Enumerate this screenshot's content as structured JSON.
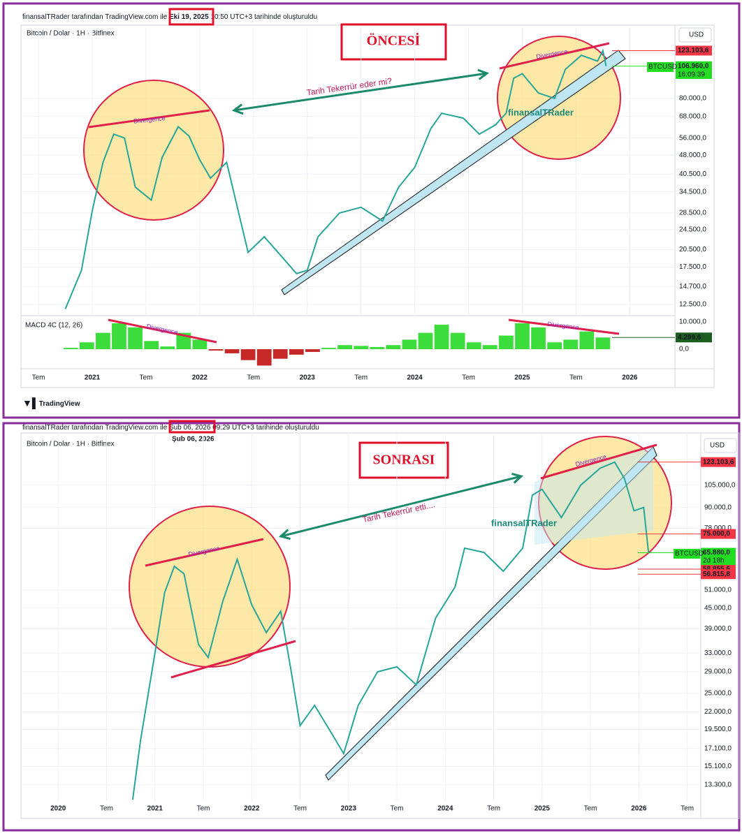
{
  "header_top": {
    "prefix": "finansalTRader tarafından TradingView.com ile",
    "date": "Eki 19, 2025",
    "suffix": "10:50 UTC+3 tarihinde oluşturuldu"
  },
  "header_bottom": {
    "prefix": "finansalTRader tarafından TradingView.com ile",
    "date": "Şub 06, 2026",
    "suffix": "09:29 UTC+3 tarihinde oluşturuldu",
    "date_note": "Şub 06, 2026"
  },
  "logo": "TradingView",
  "chart_data": [
    {
      "type": "line",
      "title": "ÖNCESİ",
      "symbol": "Bitcoin / Dolar · 1H · Bitfinex",
      "currency": "USD",
      "symbol_label": "BTCUSD",
      "countdown": "16:09:39",
      "color": "#26a69a",
      "log_scale": true,
      "grid": true,
      "annotations": [
        "Tarih Tekerrür eder mi?",
        "Divergence",
        "Divergence",
        "finansalTRader"
      ],
      "x": [
        2020.75,
        2020.9,
        2021.0,
        2021.1,
        2021.2,
        2021.3,
        2021.4,
        2021.55,
        2021.65,
        2021.8,
        2021.9,
        2022.0,
        2022.1,
        2022.25,
        2022.35,
        2022.45,
        2022.6,
        2022.75,
        2022.9,
        2023.0,
        2023.1,
        2023.3,
        2023.5,
        2023.7,
        2023.85,
        2024.0,
        2024.15,
        2024.25,
        2024.45,
        2024.6,
        2024.75,
        2024.85,
        2024.92,
        2025.0,
        2025.15,
        2025.3,
        2025.4,
        2025.55,
        2025.7,
        2025.75,
        2025.78
      ],
      "values": [
        12000,
        17000,
        29000,
        45000,
        58000,
        56000,
        36000,
        32000,
        47000,
        62000,
        57000,
        46000,
        39000,
        45000,
        30000,
        20000,
        23000,
        19500,
        16500,
        17000,
        23000,
        28500,
        30000,
        26500,
        36000,
        43000,
        61000,
        70000,
        67000,
        58000,
        63000,
        70000,
        96000,
        100000,
        84000,
        80000,
        104000,
        118000,
        112000,
        123000,
        107000
      ],
      "xlim": [
        2020.35,
        2026.42
      ],
      "ylim": [
        11300,
        151000
      ],
      "xticks": [
        {
          "value": 2020.5,
          "label": "Tem"
        },
        2021,
        {
          "value": 2021.5,
          "label": "Tem"
        },
        2022,
        {
          "value": 2022.5,
          "label": "Tem"
        },
        2023,
        {
          "value": 2023.5,
          "label": "Tem"
        },
        2024,
        {
          "value": 2024.5,
          "label": "Tem"
        },
        2025,
        {
          "value": 2025.5,
          "label": "Tem"
        },
        2026
      ],
      "yticks": [
        {
          "value": 12500,
          "label": "12.500,0"
        },
        {
          "value": 14700,
          "label": "14.700,0"
        },
        {
          "value": 17500,
          "label": "17.500,0"
        },
        {
          "value": 20500,
          "label": "20.500,0"
        },
        {
          "value": 24500,
          "label": "24.500,0"
        },
        {
          "value": 28500,
          "label": "28.500,0"
        },
        {
          "value": 34500,
          "label": "34.500,0"
        },
        {
          "value": 40500,
          "label": "40.500,0"
        },
        {
          "value": 48000,
          "label": "48.000,0"
        },
        {
          "value": 56000,
          "label": "56.000,0"
        },
        {
          "value": 68000,
          "label": "68.000,0"
        },
        {
          "value": 80000,
          "label": "80.000,0"
        }
      ],
      "price_labels": [
        {
          "value": 123103.6,
          "label": "123.103,6",
          "color": "#f23645"
        },
        {
          "value": 106960,
          "label": "106.960,0",
          "color": "#22dd22"
        }
      ]
    },
    {
      "type": "bar",
      "title": "MACD 4C (12, 26)",
      "up_color": "#3ddc3d",
      "down_color": "#c62828",
      "grid": false,
      "x": [
        2020.8,
        2020.95,
        2021.1,
        2021.25,
        2021.4,
        2021.55,
        2021.7,
        2021.85,
        2022.0,
        2022.15,
        2022.3,
        2022.45,
        2022.6,
        2022.75,
        2022.9,
        2023.05,
        2023.2,
        2023.35,
        2023.5,
        2023.65,
        2023.8,
        2023.95,
        2024.1,
        2024.25,
        2024.4,
        2024.55,
        2024.7,
        2024.85,
        2025.0,
        2025.15,
        2025.3,
        2025.45,
        2025.6,
        2025.75
      ],
      "values": [
        500,
        2500,
        6000,
        9500,
        8000,
        3000,
        1000,
        6000,
        3500,
        -500,
        -1500,
        -4000,
        -6000,
        -3500,
        -2000,
        -1000,
        500,
        1500,
        1200,
        800,
        1500,
        3500,
        6000,
        9000,
        6000,
        2500,
        1500,
        5000,
        9500,
        8000,
        2500,
        3500,
        6500,
        4300
      ],
      "xlim": [
        2020.35,
        2026.42
      ],
      "ylim": [
        -6900,
        12300
      ],
      "yticks": [
        {
          "value": 10000,
          "label": "10.000,0"
        },
        {
          "value": 0,
          "label": "0,0"
        }
      ],
      "annotations": [
        "Divergence",
        "Divergence"
      ],
      "price_labels": [
        {
          "value": 4299.6,
          "label": "4.299,6",
          "color": "#1b5e20"
        }
      ]
    },
    {
      "type": "line",
      "title": "SONRASI",
      "symbol": "Bitcoin / Dolar · 1H · Bitfinex",
      "currency": "USD",
      "symbol_label": "BTCUSD",
      "countdown": "2d 18h",
      "color": "#26a69a",
      "log_scale": true,
      "grid": true,
      "annotations": [
        "Tarih Tekerrür etti....",
        "Divergence",
        "Divergence",
        "finansalTRader"
      ],
      "x": [
        2020.77,
        2020.85,
        2021.0,
        2021.1,
        2021.2,
        2021.3,
        2021.45,
        2021.55,
        2021.7,
        2021.85,
        2022.0,
        2022.15,
        2022.3,
        2022.4,
        2022.5,
        2022.65,
        2022.8,
        2022.95,
        2023.1,
        2023.3,
        2023.5,
        2023.7,
        2023.9,
        2024.1,
        2024.2,
        2024.4,
        2024.6,
        2024.8,
        2024.9,
        2025.0,
        2025.2,
        2025.4,
        2025.6,
        2025.75,
        2025.85,
        2025.95,
        2026.05,
        2026.1
      ],
      "values": [
        12000,
        18000,
        33000,
        50000,
        60000,
        57000,
        35000,
        32000,
        47000,
        63000,
        46000,
        38000,
        44000,
        30000,
        20000,
        23000,
        19500,
        16500,
        23000,
        29000,
        30000,
        26500,
        42000,
        52000,
        68000,
        66000,
        58000,
        68000,
        98000,
        102000,
        84000,
        105000,
        118000,
        123000,
        110000,
        88000,
        90000,
        65880
      ],
      "xlim": [
        2019.63,
        2026.64
      ],
      "ylim": [
        11900,
        149000
      ],
      "xticks": [
        2020,
        {
          "value": 2020.5,
          "label": "Tem"
        },
        2021,
        {
          "value": 2021.5,
          "label": "Tem"
        },
        2022,
        {
          "value": 2022.5,
          "label": "Tem"
        },
        2023,
        {
          "value": 2023.5,
          "label": "Tem"
        },
        2024,
        {
          "value": 2024.5,
          "label": "Tem"
        },
        2025,
        {
          "value": 2025.5,
          "label": "Tem"
        },
        2026,
        {
          "value": 2026.5,
          "label": "Tem"
        }
      ],
      "yticks": [
        {
          "value": 13300,
          "label": "13.300,0"
        },
        {
          "value": 15100,
          "label": "15.100,0"
        },
        {
          "value": 17100,
          "label": "17.100,0"
        },
        {
          "value": 19500,
          "label": "19.500,0"
        },
        {
          "value": 22000,
          "label": "22.000,0"
        },
        {
          "value": 25000,
          "label": "25.000,0"
        },
        {
          "value": 29000,
          "label": "29.000,0"
        },
        {
          "value": 33000,
          "label": "33.000,0"
        },
        {
          "value": 39000,
          "label": "39.000,0"
        },
        {
          "value": 45000,
          "label": "45.000,0"
        },
        {
          "value": 51000,
          "label": "51.000,0"
        },
        {
          "value": 78000,
          "label": "78.000,0"
        },
        {
          "value": 90000,
          "label": "90.000,0"
        },
        {
          "value": 105000,
          "label": "105.000,0"
        }
      ],
      "price_labels": [
        {
          "value": 123103.6,
          "label": "123.103,6",
          "color": "#f23645"
        },
        {
          "value": 75000,
          "label": "75.000,0",
          "color": "#f23645"
        },
        {
          "value": 65880,
          "label": "65.880,0",
          "color": "#22dd22"
        },
        {
          "value": 58855.6,
          "label": "58.855,6",
          "color": "#f23645"
        },
        {
          "value": 56815.8,
          "label": "56.815,8",
          "color": "#f23645"
        }
      ]
    }
  ]
}
